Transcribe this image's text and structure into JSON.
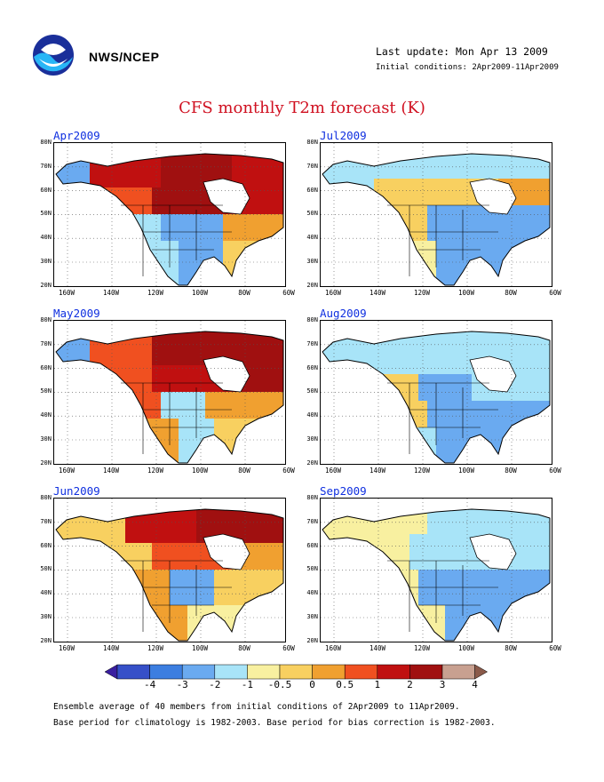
{
  "header": {
    "org": "NWS/NCEP",
    "last_update": "Last update: Mon Apr 13 2009",
    "initial_conditions": "Initial conditions: 2Apr2009-11Apr2009",
    "title": "CFS monthly T2m forecast (K)"
  },
  "panels": [
    {
      "title": "Apr2009",
      "pattern": "apr"
    },
    {
      "title": "Jul2009",
      "pattern": "jul"
    },
    {
      "title": "May2009",
      "pattern": "may"
    },
    {
      "title": "Aug2009",
      "pattern": "aug"
    },
    {
      "title": "Jun2009",
      "pattern": "jun"
    },
    {
      "title": "Sep2009",
      "pattern": "sep"
    }
  ],
  "axes": {
    "lat_labels": [
      "80N",
      "70N",
      "60N",
      "50N",
      "40N",
      "30N",
      "20N"
    ],
    "lon_labels": [
      "160W",
      "140W",
      "120W",
      "100W",
      "80W",
      "60W"
    ]
  },
  "colorbar": {
    "labels": [
      "-4",
      "-3",
      "-2",
      "-1",
      "-0.5",
      "0",
      "0.5",
      "1",
      "2",
      "3",
      "4"
    ],
    "colors": [
      "#3a1fa0",
      "#3650c8",
      "#3c7ee0",
      "#6aaaf0",
      "#a8e4f8",
      "#f8f0a0",
      "#f8d060",
      "#f0a030",
      "#f05020",
      "#c01010",
      "#a01010",
      "#c8a090",
      "#8a5a4a"
    ]
  },
  "footer": {
    "line1": "Ensemble average of 40 members from initial conditions of 2Apr2009 to 11Apr2009.",
    "line2": "Base period for climatology is 1982-2003. Base period for bias correction is 1982-2003."
  }
}
